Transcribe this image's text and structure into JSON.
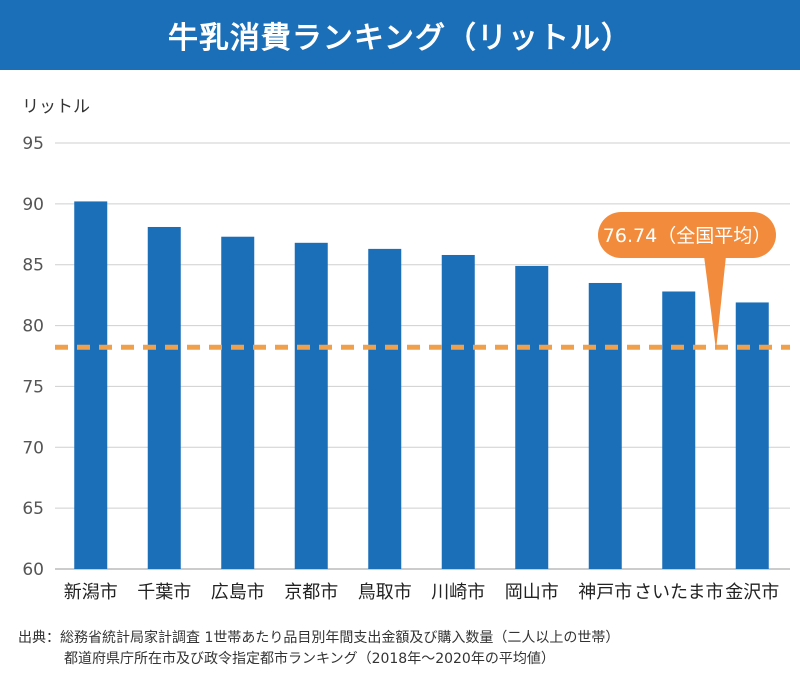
{
  "header": {
    "title": "牛乳消費ランキング（リットル）"
  },
  "chart_data": {
    "type": "bar",
    "title": "牛乳消費ランキング（リットル）",
    "ylabel": "リットル",
    "xlabel": "",
    "categories": [
      "新潟市",
      "千葉市",
      "広島市",
      "京都市",
      "鳥取市",
      "川崎市",
      "岡山市",
      "神戸市",
      "さいたま市",
      "金沢市"
    ],
    "values": [
      90.2,
      88.1,
      87.3,
      86.8,
      86.3,
      85.8,
      84.9,
      83.5,
      82.8,
      81.9
    ],
    "ylim": [
      60,
      95
    ],
    "yticks": [
      60,
      65,
      70,
      75,
      80,
      85,
      90,
      95
    ],
    "ytick_labels": [
      "60",
      "65",
      "70",
      "75",
      "80",
      "85",
      "90",
      "95"
    ],
    "grid": true,
    "reference_line": {
      "value": 76.74,
      "label": "76.74（全国平均）",
      "style": "dashed"
    },
    "colors": {
      "bar": "#1a6fb8",
      "reference": "#f0a04b",
      "callout": "#f28c3c",
      "grid": "#cfcfcf"
    }
  },
  "source": {
    "line1": "出典：総務省統計局家計調査 1世帯あたり品目別年間支出金額及び購入数量（二人以上の世帯）",
    "line2": "都道府県庁所在市及び政令指定都市ランキング（2018年〜2020年の平均値）"
  }
}
